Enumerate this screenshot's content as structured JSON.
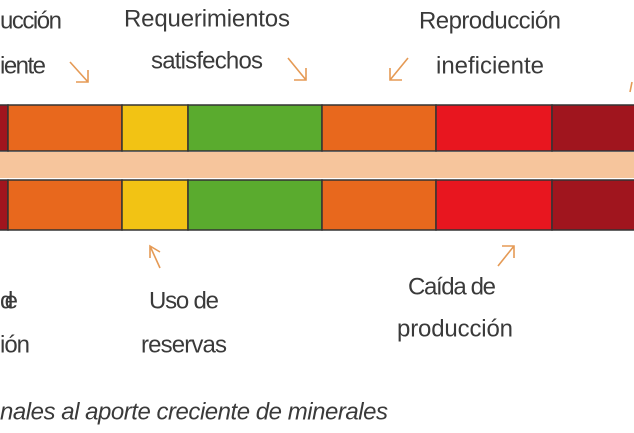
{
  "labels": {
    "top_left": [
      "ucción",
      "iente"
    ],
    "top_middle": [
      "Requerimientos",
      "satisfechos"
    ],
    "top_right": [
      "Reproducción",
      "ineficiente"
    ],
    "bottom_left": [
      "de",
      "ión"
    ],
    "bottom_middle": [
      "Uso de",
      "reservas"
    ],
    "bottom_right": [
      "Caída de",
      "producción"
    ]
  },
  "caption": "nales al aporte creciente de minerales"
}
